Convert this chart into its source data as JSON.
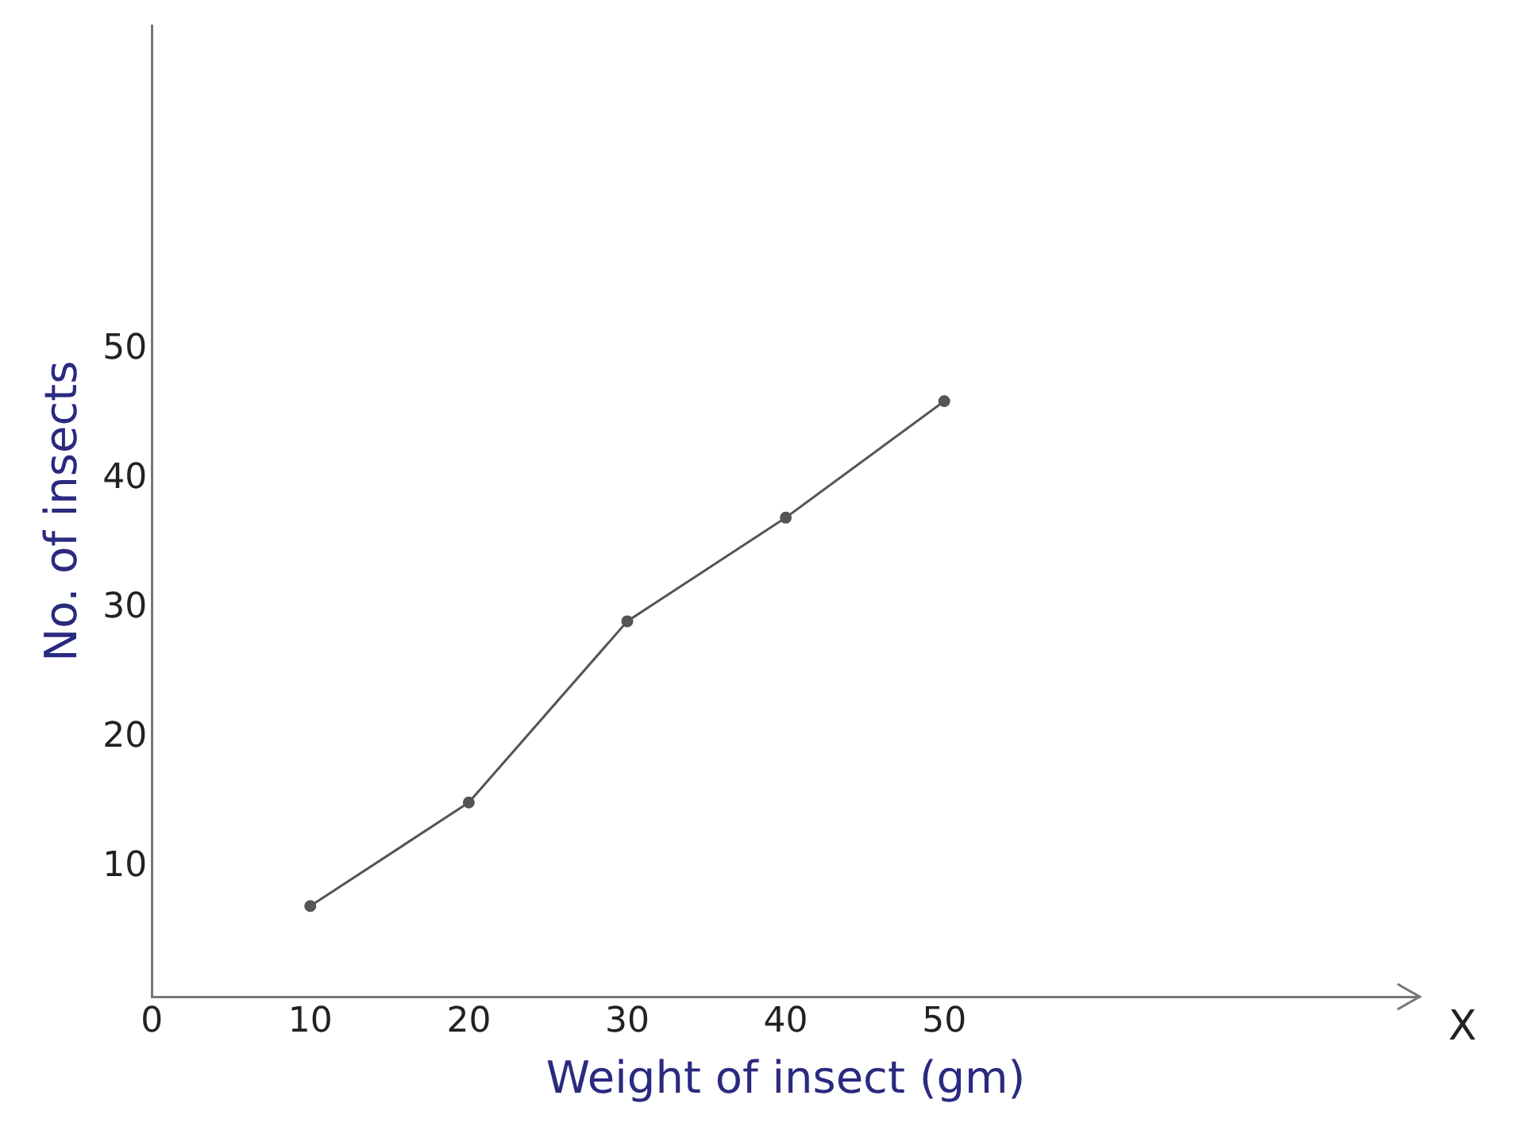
{
  "chart_data": {
    "type": "line",
    "xlabel": "Weight of insect (gm)",
    "ylabel": "No. of insects",
    "x": [
      10,
      20,
      30,
      40,
      50
    ],
    "series": [
      {
        "color": "#555555",
        "values": [
          7,
          15,
          29,
          37,
          46
        ]
      }
    ],
    "xlim": [
      0,
      80
    ],
    "xticks": [
      0,
      10,
      20,
      30,
      40,
      50
    ],
    "ylim": [
      0,
      75
    ],
    "yticks": [
      10,
      20,
      30,
      40,
      50
    ],
    "grid": false,
    "legend": false,
    "marker": "circle",
    "line_style": "solid",
    "annotations": [
      "X"
    ]
  }
}
